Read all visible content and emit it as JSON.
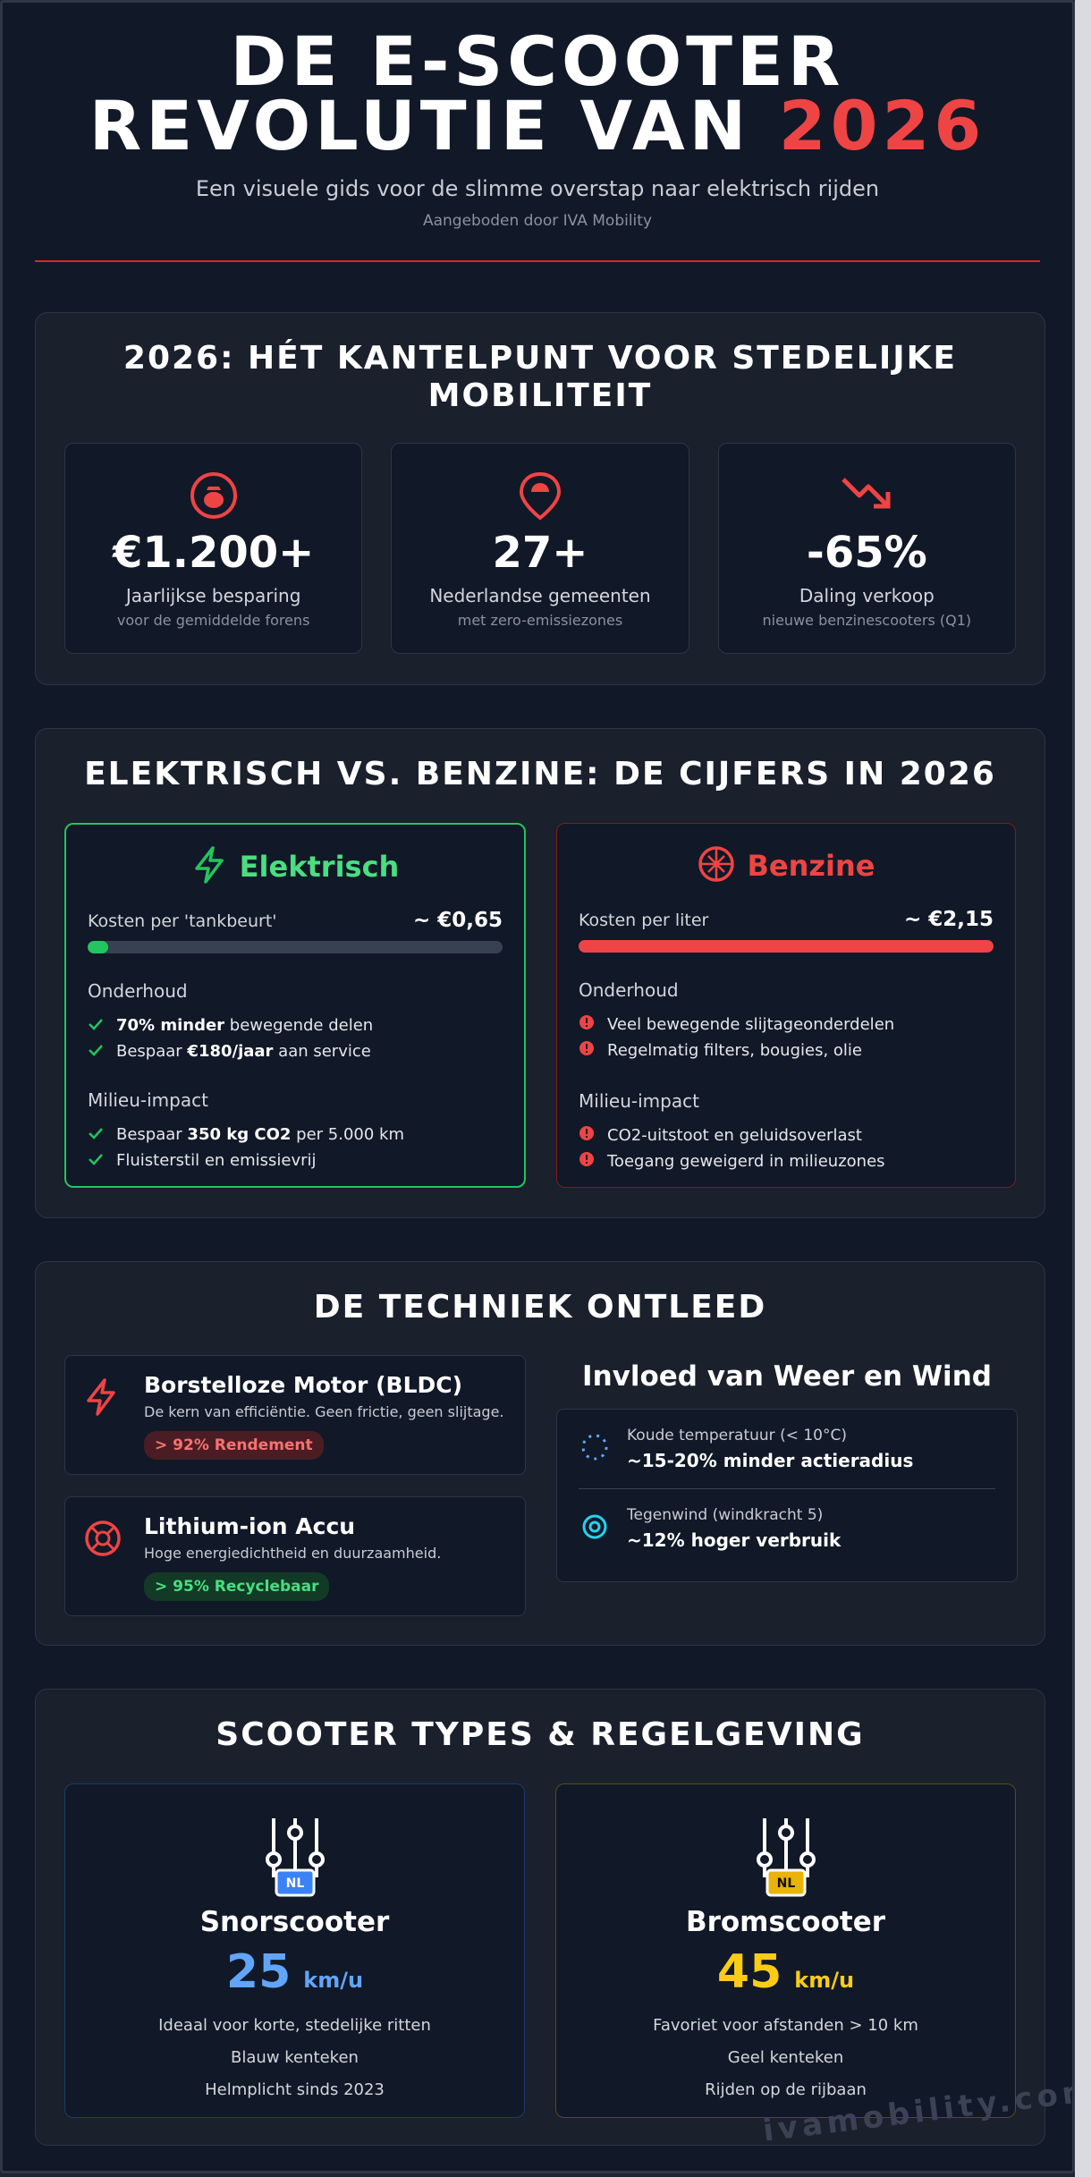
{
  "header": {
    "title_line1": "DE E-SCOOTER",
    "title_line2_prefix": "REVOLUTIE VAN ",
    "title_line2_year": "2026",
    "subtitle": "Een visuele gids voor de slimme overstap naar elektrisch rijden",
    "byline": "Aangeboden door IVA Mobility"
  },
  "colors": {
    "accent": "#ef4444",
    "electric": "#22c55e",
    "blue": "#60a5fa",
    "yellow": "#facc15"
  },
  "section1": {
    "title": "2026: HÉT KANTELPUNT VOOR STEDELIJKE MOBILITEIT",
    "stats": [
      {
        "icon": "money-bag-icon",
        "value": "€1.200+",
        "label": "Jaarlijkse besparing",
        "sub": "voor de gemiddelde forens"
      },
      {
        "icon": "map-pin-icon",
        "value": "27+",
        "label": "Nederlandse gemeenten",
        "sub": "met zero-emissiezones"
      },
      {
        "icon": "trend-down-icon",
        "value": "-65%",
        "label": "Daling verkoop",
        "sub": "nieuwe benzinescooters (Q1)"
      }
    ]
  },
  "section2": {
    "title": "ELEKTRISCH VS. BENZINE: DE CIJFERS IN 2026",
    "electric": {
      "name": "Elektrisch",
      "cost_label": "Kosten per 'tankbeurt'",
      "cost_value": "~ €0,65",
      "cost_fill": 0.05,
      "maintenance_label": "Onderhoud",
      "maintenance": [
        {
          "bold": "70% minder",
          "rest": " bewegende delen",
          "pre": ""
        },
        {
          "pre": "Bespaar ",
          "bold": "€180/jaar",
          "rest": " aan service"
        }
      ],
      "impact_label": "Milieu-impact",
      "impact": [
        {
          "pre": "Bespaar ",
          "bold": "350 kg CO2",
          "rest": " per 5.000 km"
        },
        {
          "pre": "Fluisterstil en emissievrij",
          "bold": "",
          "rest": ""
        }
      ]
    },
    "petrol": {
      "name": "Benzine",
      "cost_label": "Kosten per liter",
      "cost_value": "~ €2,15",
      "cost_fill": 1.0,
      "maintenance_label": "Onderhoud",
      "maintenance": [
        "Veel bewegende slijtageonderdelen",
        "Regelmatig filters, bougies, olie"
      ],
      "impact_label": "Milieu-impact",
      "impact": [
        "CO2-uitstoot en geluidsoverlast",
        "Toegang geweigerd in milieuzones"
      ]
    }
  },
  "section3": {
    "title": "DE TECHNIEK ONTLEED",
    "motor": {
      "title": "Borstelloze Motor (BLDC)",
      "desc": "De kern van efficiëntie. Geen frictie, geen slijtage.",
      "badge": "> 92% Rendement"
    },
    "battery": {
      "title": "Lithium-ion Accu",
      "desc": "Hoge energiedichtheid en duurzaamheid.",
      "badge": "> 95% Recyclebaar"
    },
    "weather": {
      "title": "Invloed van Weer en Wind",
      "rows": [
        {
          "label": "Koude temperatuur (< 10°C)",
          "value": "~15-20% minder actieradius"
        },
        {
          "label": "Tegenwind (windkracht 5)",
          "value": "~12% hoger verbruik"
        }
      ]
    }
  },
  "section4": {
    "title": "SCOOTER TYPES & REGELGEVING",
    "types": [
      {
        "badge": "NL",
        "name": "Snorscooter",
        "speed": "25",
        "unit": "km/u",
        "lines": [
          "Ideaal voor korte, stedelijke ritten",
          "Blauw kenteken",
          "Helmplicht sinds 2023"
        ]
      },
      {
        "badge": "NL",
        "name": "Bromscooter",
        "speed": "45",
        "unit": "km/u",
        "lines": [
          "Favoriet voor afstanden > 10 km",
          "Geel kenteken",
          "Rijden op de rijbaan"
        ]
      }
    ]
  },
  "watermark": "ivamobility.com"
}
